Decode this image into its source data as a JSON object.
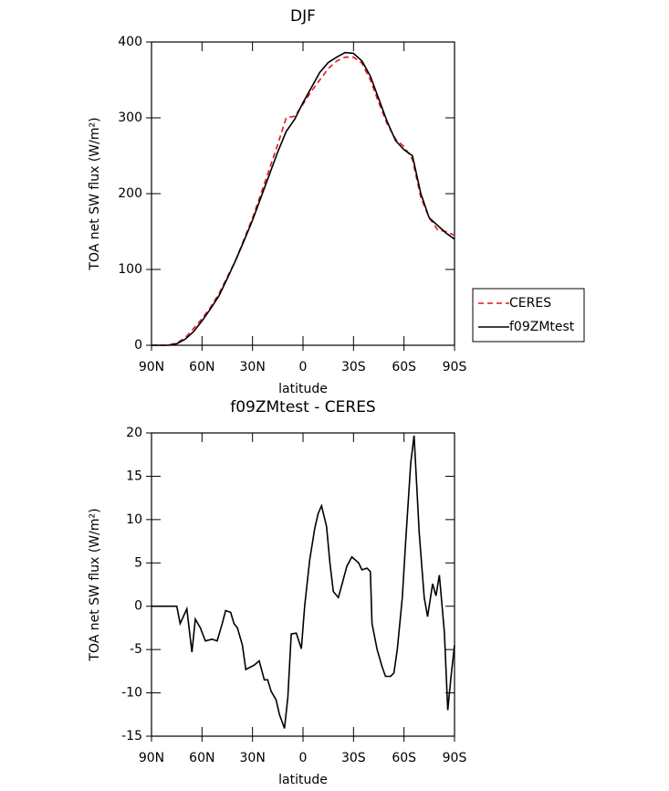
{
  "chart_data": [
    {
      "type": "line",
      "title": "DJF",
      "xlabel": "latitude",
      "ylabel": "TOA net SW flux (W/m²)",
      "x": [
        90,
        85,
        80,
        75,
        70,
        65,
        60,
        55,
        50,
        45,
        40,
        35,
        30,
        25,
        20,
        15,
        10,
        5,
        0,
        -5,
        -10,
        -15,
        -20,
        -25,
        -30,
        -35,
        -40,
        -45,
        -50,
        -55,
        -60,
        -65,
        -70,
        -75,
        -80,
        -85,
        -90
      ],
      "series": [
        {
          "name": "CERES",
          "color": "#e8141e",
          "linestyle": "dashed",
          "values": [
            0,
            0,
            0,
            3,
            10,
            22,
            35,
            50,
            68,
            90,
            112,
            140,
            168,
            200,
            232,
            265,
            300,
            302,
            318,
            335,
            350,
            365,
            375,
            380,
            380,
            372,
            350,
            320,
            292,
            272,
            262,
            245,
            195,
            168,
            152,
            150,
            145
          ]
        },
        {
          "name": "f09ZMtest",
          "color": "#000000",
          "linestyle": "solid",
          "values": [
            0,
            0,
            0,
            2,
            8,
            18,
            32,
            48,
            65,
            88,
            112,
            138,
            165,
            195,
            225,
            255,
            282,
            298,
            320,
            340,
            360,
            373,
            380,
            386,
            385,
            375,
            355,
            325,
            295,
            270,
            258,
            250,
            200,
            168,
            158,
            148,
            140
          ]
        }
      ],
      "xlim": [
        90,
        -90
      ],
      "xticks": [
        {
          "value": 90,
          "label": "90N"
        },
        {
          "value": 60,
          "label": "60N"
        },
        {
          "value": 30,
          "label": "30N"
        },
        0,
        {
          "value": -30,
          "label": "30S"
        },
        {
          "value": -60,
          "label": "60S"
        },
        {
          "value": -90,
          "label": "90S"
        }
      ],
      "ylim": [
        0,
        400
      ],
      "yticks": [
        0,
        100,
        200,
        300,
        400
      ],
      "legend": "outside-right"
    },
    {
      "type": "line",
      "title": "f09ZMtest - CERES",
      "xlabel": "latitude",
      "ylabel": "TOA net SW flux (W/m²)",
      "x": [
        90,
        82,
        75,
        73,
        69,
        66,
        64,
        61,
        58,
        54,
        51,
        48,
        46,
        43,
        41,
        39,
        36,
        34,
        29,
        26,
        23,
        21,
        19,
        16,
        14,
        11,
        9,
        7,
        4,
        1,
        -1,
        -4,
        -7,
        -9,
        -11,
        -14,
        -16,
        -18,
        -21,
        -23,
        -26,
        -29,
        -33,
        -35,
        -38,
        -40,
        -41,
        -44,
        -47,
        -49,
        -52,
        -54,
        -56,
        -59,
        -61,
        -64,
        -66,
        -69,
        -72,
        -74,
        -77,
        -79,
        -81,
        -84,
        -86,
        -88,
        -90
      ],
      "series": [
        {
          "color": "#000000",
          "linestyle": "solid",
          "values": [
            0,
            0,
            0,
            -2,
            -0.3,
            -5.3,
            -1.5,
            -2.5,
            -4,
            -3.8,
            -4,
            -2,
            -0.5,
            -0.7,
            -2,
            -2.5,
            -4.5,
            -7.3,
            -6.8,
            -6.3,
            -8.5,
            -8.5,
            -9.8,
            -10.8,
            -12.5,
            -14.1,
            -10.5,
            -3.2,
            -3.1,
            -4.9,
            0,
            5.4,
            9,
            10.7,
            11.6,
            9.2,
            5,
            1.7,
            1,
            2.4,
            4.6,
            5.7,
            5,
            4.2,
            4.4,
            4,
            -2,
            -5,
            -7,
            -8.1,
            -8.1,
            -7.7,
            -5,
            1,
            7.5,
            16.5,
            19.7,
            8.5,
            1,
            -1.2,
            2.6,
            1.2,
            3.6,
            -3,
            -12,
            -8,
            -4.5
          ]
        }
      ],
      "xlim": [
        90,
        -90
      ],
      "xticks": [
        {
          "value": 90,
          "label": "90N"
        },
        {
          "value": 60,
          "label": "60N"
        },
        {
          "value": 30,
          "label": "30N"
        },
        0,
        {
          "value": -30,
          "label": "30S"
        },
        {
          "value": -60,
          "label": "60S"
        },
        {
          "value": -90,
          "label": "90S"
        }
      ],
      "ylim": [
        -15,
        20
      ],
      "yticks": [
        -15,
        -10,
        -5,
        0,
        5,
        10,
        15,
        20
      ]
    }
  ]
}
